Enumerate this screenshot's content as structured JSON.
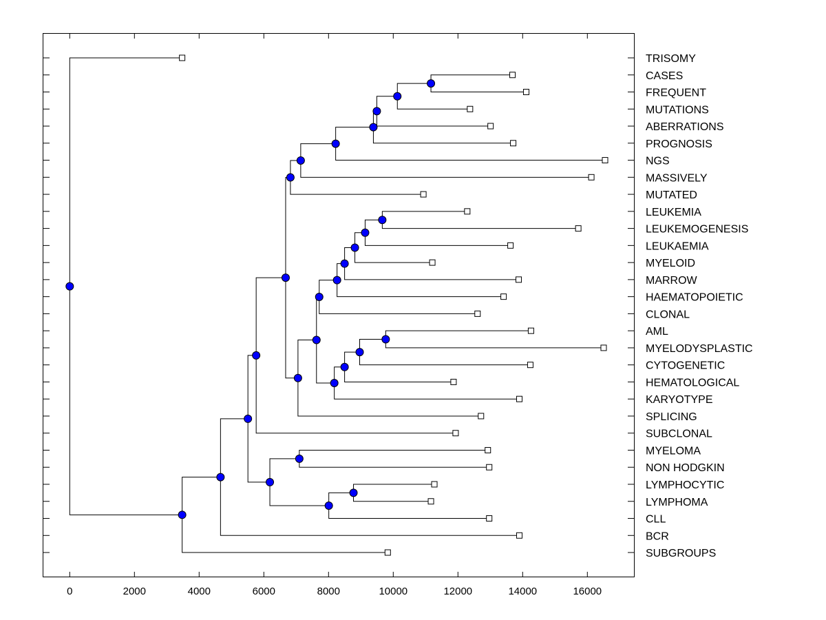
{
  "chart_data": {
    "type": "dendrogram",
    "title": "",
    "xlabel": "",
    "ylabel": "",
    "xlim": [
      -800,
      17500
    ],
    "xticks": [
      0,
      2000,
      4000,
      6000,
      8000,
      10000,
      12000,
      14000,
      16000
    ],
    "xtick_labels": [
      "0",
      "2000",
      "4000",
      "6000",
      "8000",
      "10000",
      "12000",
      "14000",
      "16000"
    ],
    "node_color": "#0000ff",
    "leaf_color": "#ffffff",
    "tree": {
      "h": 0,
      "children": [
        {
          "label": "TRISOMY",
          "h": 3475
        },
        {
          "h": 3475,
          "children": [
            {
              "h": 4661,
              "children": [
                {
                  "h": 5508,
                  "children": [
                    {
                      "h": 5763,
                      "children": [
                        {
                          "h": 6674,
                          "children": [
                            {
                              "h": 6822,
                              "children": [
                                {
                                  "h": 7140,
                                  "children": [
                                    {
                                      "h": 8220,
                                      "children": [
                                        {
                                          "h": 9386,
                                          "children": [
                                            {
                                              "h": 9492,
                                              "children": [
                                                {
                                                  "h": 10127,
                                                  "children": [
                                                    {
                                                      "h": 11165,
                                                      "children": [
                                                        {
                                                          "label": "CASES",
                                                          "h": 13686
                                                        },
                                                        {
                                                          "label": "FREQUENT",
                                                          "h": 14110
                                                        }
                                                      ]
                                                    },
                                                    {
                                                      "label": "MUTATIONS",
                                                      "h": 12373
                                                    }
                                                  ]
                                                },
                                                {
                                                  "label": "ABERRATIONS",
                                                  "h": 13008
                                                }
                                              ]
                                            },
                                            {
                                              "label": "PROGNOSIS",
                                              "h": 13708
                                            }
                                          ]
                                        },
                                        {
                                          "label": "NGS",
                                          "h": 16547
                                        }
                                      ]
                                    },
                                    {
                                      "label": "MASSIVELY",
                                      "h": 16123
                                    }
                                  ]
                                },
                                {
                                  "label": "MUTATED",
                                  "h": 10932
                                }
                              ]
                            },
                            {
                              "h": 7055,
                              "children": [
                                {
                                  "h": 7627,
                                  "children": [
                                    {
                                      "h": 7712,
                                      "children": [
                                        {
                                          "h": 8263,
                                          "children": [
                                            {
                                              "h": 8496,
                                              "children": [
                                                {
                                                  "h": 8814,
                                                  "children": [
                                                    {
                                                      "h": 9131,
                                                      "children": [
                                                        {
                                                          "h": 9661,
                                                          "children": [
                                                            {
                                                              "label": "LEUKEMIA",
                                                              "h": 12288
                                                            },
                                                            {
                                                              "label": "LEUKEMOGENESIS",
                                                              "h": 15720
                                                            }
                                                          ]
                                                        },
                                                        {
                                                          "label": "LEUKAEMIA",
                                                          "h": 13623
                                                        }
                                                      ]
                                                    },
                                                    {
                                                      "label": "MYELOID",
                                                      "h": 11208
                                                    }
                                                  ]
                                                },
                                                {
                                                  "label": "MARROW",
                                                  "h": 13877
                                                }
                                              ]
                                            },
                                            {
                                              "label": "HAEMATOPOIETIC",
                                              "h": 13411
                                            }
                                          ]
                                        },
                                        {
                                          "label": "CLONAL",
                                          "h": 12606
                                        }
                                      ]
                                    },
                                    {
                                      "h": 8178,
                                      "children": [
                                        {
                                          "h": 8496,
                                          "children": [
                                            {
                                              "h": 8962,
                                              "children": [
                                                {
                                                  "h": 9767,
                                                  "children": [
                                                    {
                                                      "label": "AML",
                                                      "h": 14258
                                                    },
                                                    {
                                                      "label": "MYELODYSPLASTIC",
                                                      "h": 16504
                                                    }
                                                  ]
                                                },
                                                {
                                                  "label": "CYTOGENETIC",
                                                  "h": 14237
                                                }
                                              ]
                                            },
                                            {
                                              "label": "HEMATOLOGICAL",
                                              "h": 11864
                                            }
                                          ]
                                        },
                                        {
                                          "label": "KARYOTYPE",
                                          "h": 13898
                                        }
                                      ]
                                    }
                                  ]
                                },
                                {
                                  "label": "SPLICING",
                                  "h": 12712
                                }
                              ]
                            }
                          ]
                        },
                        {
                          "label": "SUBCLONAL",
                          "h": 11928
                        }
                      ]
                    },
                    {
                      "h": 6186,
                      "children": [
                        {
                          "h": 7097,
                          "children": [
                            {
                              "label": "MYELOMA",
                              "h": 12924
                            },
                            {
                              "label": "NON HODGKIN",
                              "h": 12966
                            }
                          ]
                        },
                        {
                          "h": 8008,
                          "children": [
                            {
                              "h": 8771,
                              "children": [
                                {
                                  "label": "LYMPHOCYTIC",
                                  "h": 11271
                                },
                                {
                                  "label": "LYMPHOMA",
                                  "h": 11165
                                }
                              ]
                            },
                            {
                              "label": "CLL",
                              "h": 12966
                            }
                          ]
                        }
                      ]
                    }
                  ]
                },
                {
                  "label": "BCR",
                  "h": 13898
                }
              ]
            },
            {
              "label": "SUBGROUPS",
              "h": 9830
            }
          ]
        }
      ]
    }
  }
}
